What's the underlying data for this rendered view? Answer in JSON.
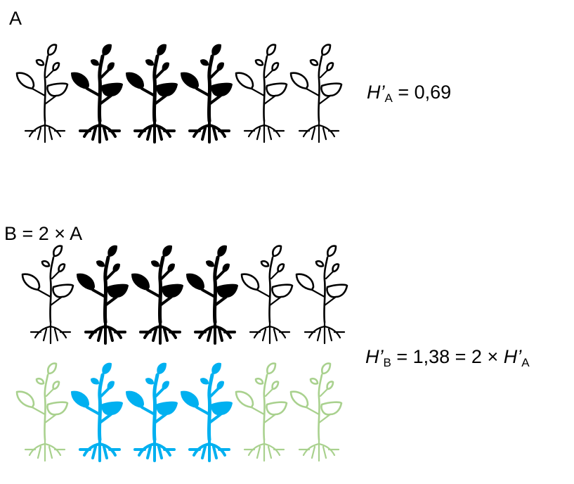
{
  "panel_a": {
    "label": "A",
    "formula": {
      "symbol": "H’",
      "subscript": "A",
      "rest": " = 0,69"
    },
    "rows": [
      {
        "plants": [
          "outline",
          "solid",
          "solid",
          "solid",
          "outline",
          "outline"
        ],
        "colors": {
          "outline": "#000000",
          "solid": "#000000"
        }
      }
    ]
  },
  "panel_b": {
    "label": "B = 2 × A",
    "formula": {
      "symbol": "H’",
      "subscript": "B",
      "mid": " = 1,38 = 2 × ",
      "symbol2": "H’",
      "subscript2": "A"
    },
    "rows": [
      {
        "plants": [
          "outline",
          "solid",
          "solid",
          "solid",
          "outline",
          "outline"
        ],
        "colors": {
          "outline": "#000000",
          "solid": "#000000"
        }
      },
      {
        "plants": [
          "outline",
          "solid",
          "solid",
          "solid",
          "outline",
          "outline"
        ],
        "colors": {
          "outline": "#a9d18e",
          "solid": "#00b0f0"
        }
      }
    ]
  }
}
